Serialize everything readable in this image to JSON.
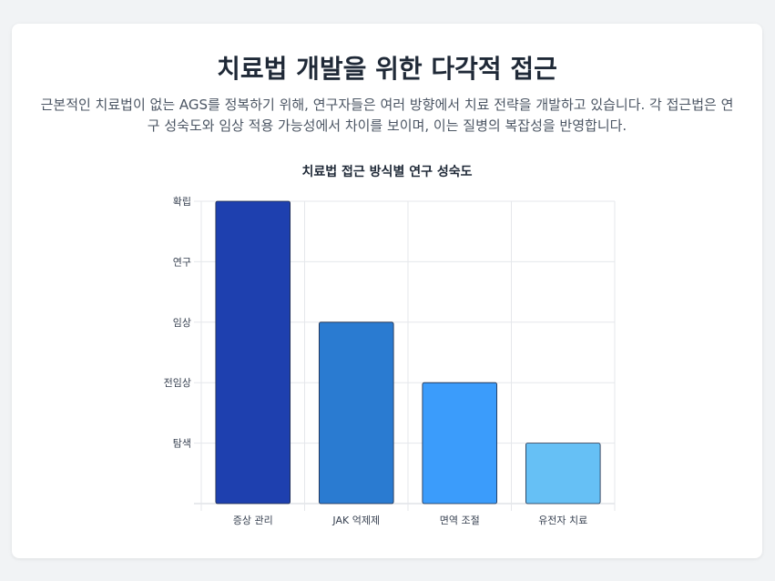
{
  "header": {
    "title": "치료법 개발을 위한 다각적 접근",
    "description": "근본적인 치료법이 없는 AGS를 정복하기 위해, 연구자들은 여러 방향에서 치료 전략을 개발하고 있습니다. 각 접근법은 연구 성숙도와 임상 적용 가능성에서 차이를 보이며, 이는 질병의 복잡성을 반영합니다."
  },
  "chart_data": {
    "type": "bar",
    "title": "치료법 접근 방식별 연구 성숙도",
    "categories": [
      "증상 관리",
      "JAK 억제제",
      "면역 조절",
      "유전자 치료"
    ],
    "values": [
      5,
      3,
      2,
      1
    ],
    "y_tick_labels": [
      "탐색",
      "전임상",
      "임상",
      "연구",
      "확립"
    ],
    "ylim": [
      0,
      5
    ],
    "xlabel": "",
    "ylabel": "",
    "grid": true,
    "legend": "none",
    "colors": [
      "#1e40af",
      "#2a7bd1",
      "#3b9cfb",
      "#66c0f5"
    ]
  }
}
